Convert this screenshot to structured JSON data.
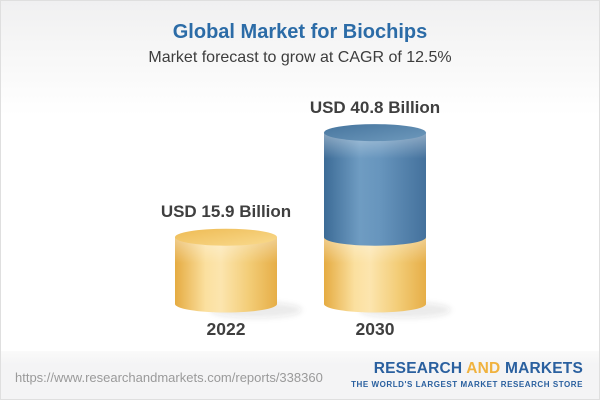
{
  "header": {
    "title": "Global Market for Biochips",
    "subtitle": "Market forecast to grow at CAGR of 12.5%"
  },
  "chart_data": {
    "type": "bar",
    "subtype": "3d-stacked-cylinder",
    "title": "Global Market for Biochips",
    "subtitle": "Market forecast to grow at CAGR of 12.5%",
    "cagr_percent": 12.5,
    "unit": "USD Billion",
    "categories": [
      "2022",
      "2030"
    ],
    "values": [
      15.9,
      40.8
    ],
    "xlabel": "",
    "ylabel": "",
    "axes_visible": false,
    "legend": null,
    "bars": [
      {
        "category": "2022",
        "value": 15.9,
        "value_label": "USD 15.9 Billion",
        "segments": [
          {
            "name": "2022-base",
            "value": 15.9,
            "palette": "gold"
          }
        ]
      },
      {
        "category": "2030",
        "value": 40.8,
        "value_label": "USD 40.8 Billion",
        "segments": [
          {
            "name": "2022-base",
            "value": 15.9,
            "palette": "gold"
          },
          {
            "name": "growth-to-2030",
            "value": 24.9,
            "palette": "blue"
          }
        ]
      }
    ],
    "palette_colors": {
      "gold": "#f2c express",
      "blue": "#4d7fab"
    }
  },
  "footer": {
    "url": "https://www.researchandmarkets.com/reports/338360",
    "logo": {
      "word1": "RESEARCH",
      "word2": "AND",
      "word3": "MARKETS",
      "tagline": "THE WORLD'S LARGEST MARKET RESEARCH STORE"
    }
  },
  "colors": {
    "title_blue": "#2c6ca7",
    "text_dark": "#3f3f3f",
    "url_gray": "#9a9a9a",
    "logo_blue": "#2a609f",
    "logo_gold": "#f0b23e",
    "gold_edge": "#e6ae47",
    "gold_highlight": "#fce5ae",
    "gold_top": "#f5cc74",
    "blue_edge": "#3c6b96",
    "blue_highlight": "#6f9cc2",
    "blue_top": "#4e80ac",
    "footer_bg": "#f4f4f5"
  }
}
